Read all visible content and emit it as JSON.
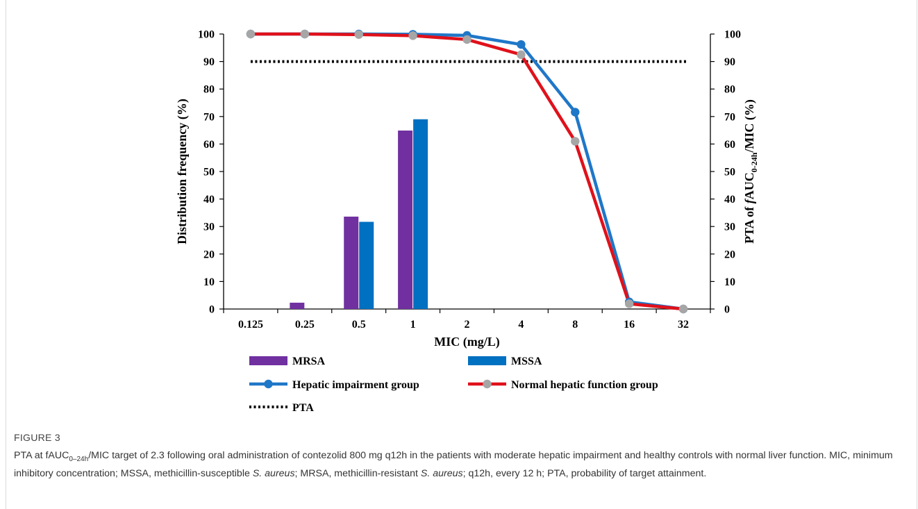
{
  "figure": {
    "label": "FIGURE 3",
    "caption_parts": [
      {
        "text": "PTA at fAUC",
        "style": "normal"
      },
      {
        "text": "0–24h",
        "style": "sub"
      },
      {
        "text": "/MIC target of 2.3 following oral administration of contezolid 800 mg q12h in the patients with moderate hepatic impairment and healthy controls with normal liver function. MIC, minimum inhibitory concentration; MSSA, methicillin-susceptible ",
        "style": "normal"
      },
      {
        "text": "S. aureus",
        "style": "italic"
      },
      {
        "text": "; MRSA, methicillin-resistant ",
        "style": "normal"
      },
      {
        "text": "S. aureus",
        "style": "italic"
      },
      {
        "text": "; q12h, every 12 h; PTA, probability of target attainment.",
        "style": "normal"
      }
    ]
  },
  "chart_data": {
    "type": "bar",
    "categories": [
      "0.125",
      "0.25",
      "0.5",
      "1",
      "2",
      "4",
      "8",
      "16",
      "32"
    ],
    "xlabel": "MIC (mg/L)",
    "ylabel_left": "Distribution frequency (%)",
    "ylabel_right": {
      "prefix": "PTA of ",
      "italic": "f",
      "main": "AUC",
      "sub": "0-24h",
      "suffix": "/MIC (%)"
    },
    "ylim_left": [
      0,
      100
    ],
    "ylim_right": [
      0,
      100
    ],
    "yticks": [
      0,
      10,
      20,
      30,
      40,
      50,
      60,
      70,
      80,
      90,
      100
    ],
    "grid": false,
    "bar_series": [
      {
        "name": "MRSA",
        "color": "#7030a0",
        "values": [
          0,
          2.3,
          33.6,
          64.9,
          0,
          0,
          0,
          0,
          0
        ]
      },
      {
        "name": "MSSA",
        "color": "#0070c0",
        "values": [
          0,
          0,
          31.7,
          69.0,
          0,
          0,
          0,
          0,
          0
        ]
      }
    ],
    "line_series": [
      {
        "name": "Hepatic impairment group",
        "color": "#1f77c8",
        "marker_color": "#1f77c8",
        "axis": "right",
        "values": [
          100,
          100,
          100,
          99.9,
          99.5,
          96.2,
          71.6,
          2.6,
          0
        ]
      },
      {
        "name": "Normal hepatic function group",
        "color": "#e0111b",
        "marker_color": "#a6a6a6",
        "axis": "right",
        "values": [
          100,
          100,
          99.8,
          99.4,
          98.0,
          92.5,
          61.0,
          1.9,
          0
        ]
      }
    ],
    "reference_line": {
      "name": "PTA",
      "value": 90,
      "axis": "right",
      "color": "#000000",
      "style": "dotted"
    },
    "legend": {
      "placement": "bottom",
      "items": [
        {
          "label": "MRSA",
          "kind": "bar",
          "color": "#7030a0"
        },
        {
          "label": "MSSA",
          "kind": "bar",
          "color": "#0070c0"
        },
        {
          "label": "Hepatic impairment group",
          "kind": "line",
          "color": "#1f77c8",
          "marker_color": "#1f77c8"
        },
        {
          "label": "Normal hepatic function group",
          "kind": "line",
          "color": "#e0111b",
          "marker_color": "#a6a6a6"
        },
        {
          "label": "PTA",
          "kind": "dotted",
          "color": "#000000"
        }
      ]
    }
  }
}
